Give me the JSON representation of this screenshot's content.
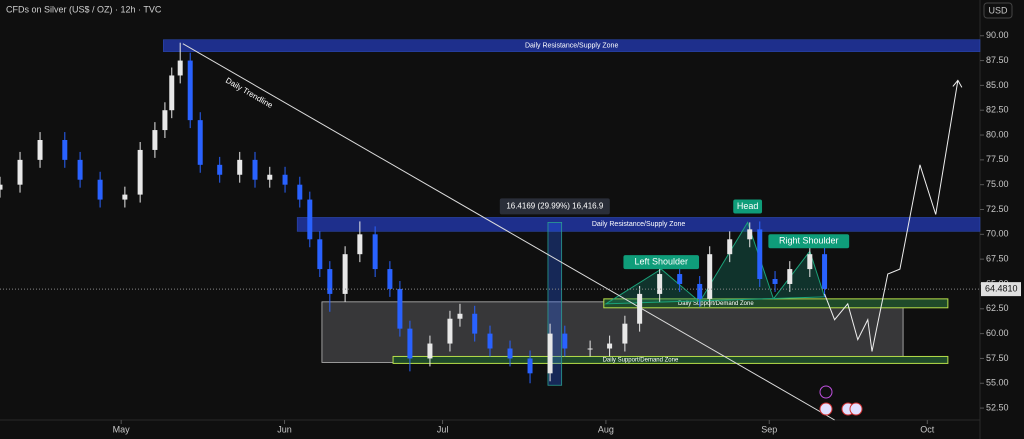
{
  "chart_data": {
    "type": "candlestick",
    "title": "CFDs on Silver (US$ / OZ) · 12h · TVC",
    "currency": "USD",
    "xlim": [
      -23,
      163
    ],
    "ylim": [
      51.3,
      93.6
    ],
    "xticks": [
      {
        "value": 0,
        "label": "May"
      },
      {
        "value": 31,
        "label": "Jun"
      },
      {
        "value": 61,
        "label": "Jul"
      },
      {
        "value": 92,
        "label": "Aug"
      },
      {
        "value": 123,
        "label": "Sep"
      },
      {
        "value": 153,
        "label": "Oct"
      }
    ],
    "yticks": [
      {
        "value": 52.5,
        "label": "52.50"
      },
      {
        "value": 55,
        "label": "55.00"
      },
      {
        "value": 57.5,
        "label": "57.50"
      },
      {
        "value": 60,
        "label": "60.00"
      },
      {
        "value": 62.5,
        "label": "62.50"
      },
      {
        "value": 65,
        "label": "65.00"
      },
      {
        "value": 67.5,
        "label": "67.50"
      },
      {
        "value": 70,
        "label": "70.00"
      },
      {
        "value": 72.5,
        "label": "72.50"
      },
      {
        "value": 75,
        "label": "75.00"
      },
      {
        "value": 77.5,
        "label": "77.50"
      },
      {
        "value": 80,
        "label": "80.00"
      },
      {
        "value": 82.5,
        "label": "82.50"
      },
      {
        "value": 85,
        "label": "85.00"
      },
      {
        "value": 87.5,
        "label": "87.50"
      },
      {
        "value": 90,
        "label": "90.00"
      }
    ],
    "grid": false,
    "up_color": "#e8e8e8",
    "down_color": "#2962ff",
    "x": [
      -23.0,
      -19.2,
      -15.4,
      -10.7,
      -7.8,
      -4.0,
      0.7,
      3.6,
      6.4,
      8.3,
      9.6,
      11.2,
      13.1,
      15.0,
      18.7,
      22.5,
      25.4,
      28.2,
      31.1,
      33.9,
      35.8,
      37.7,
      39.6,
      42.5,
      45.3,
      48.2,
      51.0,
      52.9,
      54.8,
      58.6,
      62.4,
      64.3,
      67.1,
      70.0,
      73.8,
      77.6,
      81.4,
      84.2,
      89.0,
      92.7,
      95.6,
      98.4,
      102.2,
      106.0,
      109.8,
      111.7,
      115.5,
      119.3,
      121.2,
      124.1,
      126.9,
      130.7,
      133.5
    ],
    "open": [
      74.5,
      75,
      77.5,
      79.5,
      77.5,
      75.5,
      73.5,
      74,
      78.5,
      80.5,
      82.5,
      86,
      87.5,
      81.5,
      77,
      76,
      77.5,
      75.5,
      76,
      75,
      73.5,
      69.5,
      66.5,
      64,
      68,
      70,
      66.5,
      64.5,
      60.5,
      57.5,
      59,
      61.5,
      62,
      60,
      58.5,
      57.5,
      56,
      60,
      58.5,
      58.5,
      59,
      61,
      64,
      66,
      65,
      63.5,
      68,
      69.5,
      70.5,
      65.5,
      65,
      66.5,
      68
    ],
    "high": [
      75.8,
      78.3,
      80.3,
      80.3,
      78.3,
      76.3,
      74.8,
      79.3,
      81.3,
      83.3,
      86.8,
      89.3,
      88.3,
      82.3,
      77.8,
      78.3,
      78.3,
      76.8,
      76.8,
      75.8,
      74.3,
      70.3,
      67.3,
      68.8,
      71.3,
      70.8,
      67.3,
      65.3,
      61.3,
      59.8,
      62.3,
      63,
      62.8,
      60.8,
      59.3,
      58.3,
      61,
      60.8,
      59.3,
      59.8,
      61.8,
      64.8,
      67,
      66.8,
      65.8,
      68.8,
      70.3,
      71.2,
      71.3,
      66.3,
      67.3,
      68.8,
      68.8
    ],
    "low": [
      73.7,
      74.2,
      76.7,
      76.7,
      74.7,
      72.7,
      72.7,
      73.2,
      77.7,
      79.7,
      81.7,
      85.2,
      80.7,
      76.2,
      75.2,
      75.2,
      74.7,
      74.7,
      74.2,
      72.7,
      68.7,
      65.7,
      62.2,
      63.2,
      67.2,
      65.7,
      63.7,
      59.7,
      56.2,
      56.7,
      58.2,
      60.7,
      59.2,
      57.7,
      56.7,
      55,
      55.2,
      57.7,
      57.7,
      57.7,
      58.2,
      60.2,
      63.2,
      64.2,
      62.7,
      62.7,
      67.2,
      68.7,
      64.7,
      64.2,
      64.2,
      65.7,
      63.7
    ],
    "close": [
      75,
      77.5,
      79.5,
      77.5,
      75.5,
      73.5,
      74,
      78.5,
      80.5,
      82.5,
      86,
      87.5,
      81.5,
      77,
      76,
      77.5,
      75.5,
      76,
      75,
      73.5,
      69.5,
      66.5,
      64,
      68,
      70,
      66.5,
      64.5,
      60.5,
      57.5,
      59,
      61.5,
      62,
      60,
      58.5,
      57.5,
      56,
      60,
      58.5,
      58.5,
      59,
      61,
      64,
      66,
      65,
      63.5,
      68,
      69.5,
      70.5,
      65.5,
      65,
      66.5,
      68,
      64.5
    ],
    "last_price": {
      "value": 64.481,
      "label": "64.4810"
    },
    "zones": [
      {
        "label": "Daily Resistance/Supply Zone",
        "range": [
          88.4,
          89.6
        ],
        "x_range": [
          8.0,
          163
        ],
        "color": "#1e2f8c"
      },
      {
        "label": "Daily Resistance/Supply Zone",
        "range": [
          70.3,
          71.7
        ],
        "x_range": [
          33.4,
          163
        ],
        "color": "#1e2f8c"
      },
      {
        "label": "Daily Support/Demand Zone",
        "range": [
          62.6,
          63.5
        ],
        "x_range": [
          91.6,
          156.9
        ],
        "color": "#1f4a2a"
      },
      {
        "label": "Daily Support/Demand Zone",
        "range": [
          57.0,
          57.7
        ],
        "x_range": [
          51.6,
          156.9
        ],
        "color": "#1f4a2a"
      }
    ],
    "range_box": {
      "range": [
        57.1,
        63.2
      ],
      "x_range": [
        38.1,
        148.4
      ]
    },
    "trendline": {
      "label": "Daily Trendline",
      "x": [
        11.7,
        135.4
      ],
      "values": [
        89.2,
        51.3
      ]
    },
    "projection": {
      "x": [
        133.5,
        135.4,
        137.9,
        139.8,
        141.7,
        142.5,
        145.5,
        147.8,
        151.6,
        154.6,
        158.8
      ],
      "values": [
        64,
        61.4,
        63,
        59.4,
        61.4,
        58.2,
        66,
        66.5,
        77,
        72,
        85.5
      ]
    },
    "measure": {
      "label": "16.4169 (29.99%) 16,416.9",
      "x": [
        81.0,
        83.6
      ],
      "range": [
        54.8,
        71.2
      ]
    },
    "pattern_labels": [
      {
        "text": "Left Shoulder",
        "x": 102.5,
        "y": 67.2
      },
      {
        "text": "Head",
        "x": 118.9,
        "y": 72.8
      },
      {
        "text": "Right Shoulder",
        "x": 130.5,
        "y": 69.3
      }
    ]
  }
}
